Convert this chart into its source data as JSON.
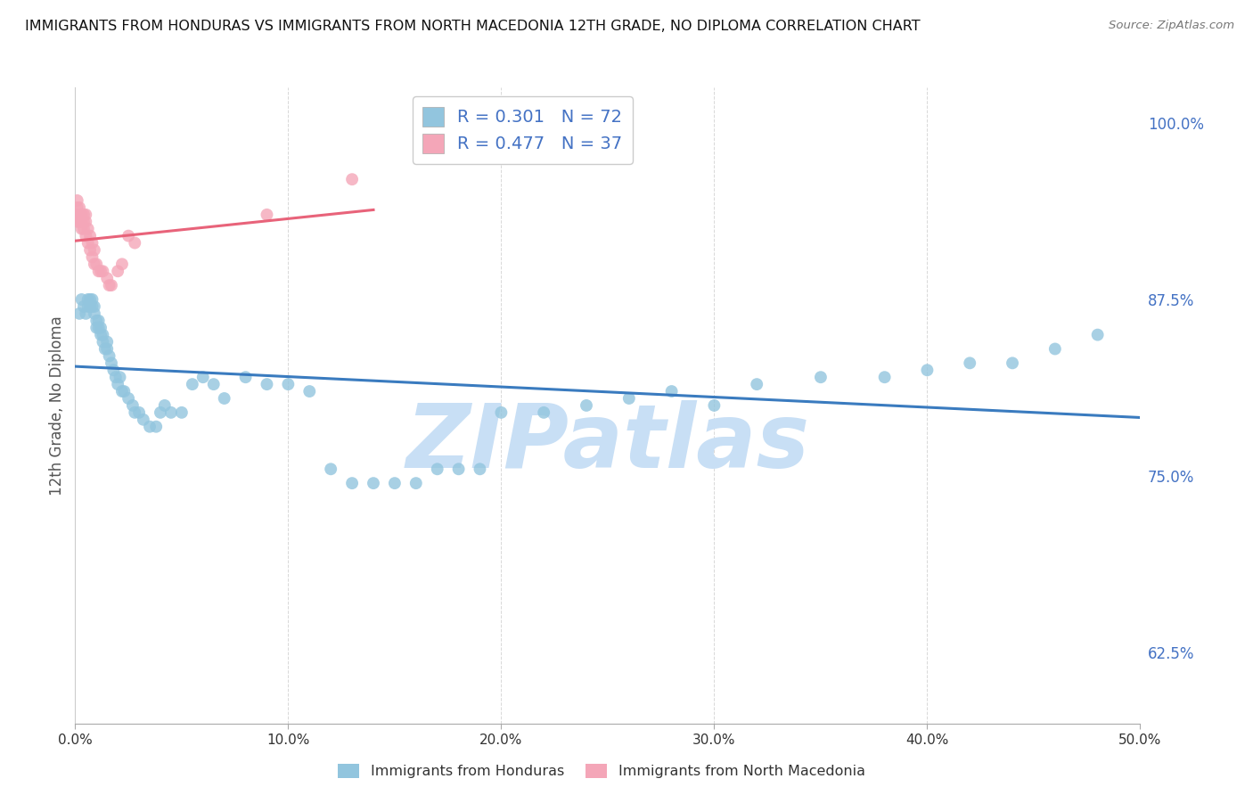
{
  "title": "IMMIGRANTS FROM HONDURAS VS IMMIGRANTS FROM NORTH MACEDONIA 12TH GRADE, NO DIPLOMA CORRELATION CHART",
  "source": "Source: ZipAtlas.com",
  "ylabel": "12th Grade, No Diploma",
  "xlim": [
    0.0,
    0.5
  ],
  "ylim": [
    0.575,
    1.025
  ],
  "yticks": [
    0.625,
    0.75,
    0.875,
    1.0
  ],
  "ytick_labels": [
    "62.5%",
    "75.0%",
    "87.5%",
    "100.0%"
  ],
  "xticks": [
    0.0,
    0.1,
    0.2,
    0.3,
    0.4,
    0.5
  ],
  "xtick_labels": [
    "0.0%",
    "10.0%",
    "20.0%",
    "30.0%",
    "40.0%",
    "50.0%"
  ],
  "honduras_R": 0.301,
  "honduras_N": 72,
  "macedonia_R": 0.477,
  "macedonia_N": 37,
  "blue_color": "#92c5de",
  "pink_color": "#f4a6b8",
  "blue_line_color": "#3a7bbf",
  "pink_line_color": "#e8637a",
  "honduras_x": [
    0.002,
    0.003,
    0.004,
    0.005,
    0.006,
    0.006,
    0.007,
    0.007,
    0.008,
    0.008,
    0.009,
    0.009,
    0.01,
    0.01,
    0.011,
    0.011,
    0.012,
    0.012,
    0.013,
    0.013,
    0.014,
    0.015,
    0.015,
    0.016,
    0.017,
    0.018,
    0.019,
    0.02,
    0.021,
    0.022,
    0.023,
    0.025,
    0.027,
    0.028,
    0.03,
    0.032,
    0.035,
    0.038,
    0.04,
    0.042,
    0.045,
    0.05,
    0.055,
    0.06,
    0.065,
    0.07,
    0.08,
    0.09,
    0.1,
    0.11,
    0.12,
    0.13,
    0.14,
    0.15,
    0.16,
    0.17,
    0.18,
    0.19,
    0.2,
    0.22,
    0.24,
    0.26,
    0.28,
    0.3,
    0.32,
    0.35,
    0.38,
    0.4,
    0.42,
    0.44,
    0.46,
    0.48
  ],
  "honduras_y": [
    0.865,
    0.875,
    0.87,
    0.865,
    0.875,
    0.87,
    0.87,
    0.875,
    0.87,
    0.875,
    0.865,
    0.87,
    0.855,
    0.86,
    0.855,
    0.86,
    0.85,
    0.855,
    0.845,
    0.85,
    0.84,
    0.84,
    0.845,
    0.835,
    0.83,
    0.825,
    0.82,
    0.815,
    0.82,
    0.81,
    0.81,
    0.805,
    0.8,
    0.795,
    0.795,
    0.79,
    0.785,
    0.785,
    0.795,
    0.8,
    0.795,
    0.795,
    0.815,
    0.82,
    0.815,
    0.805,
    0.82,
    0.815,
    0.815,
    0.81,
    0.755,
    0.745,
    0.745,
    0.745,
    0.745,
    0.755,
    0.755,
    0.755,
    0.795,
    0.795,
    0.8,
    0.805,
    0.81,
    0.8,
    0.815,
    0.82,
    0.82,
    0.825,
    0.83,
    0.83,
    0.84,
    0.85
  ],
  "macedonia_x": [
    0.001,
    0.001,
    0.001,
    0.001,
    0.002,
    0.002,
    0.002,
    0.003,
    0.003,
    0.003,
    0.004,
    0.004,
    0.004,
    0.005,
    0.005,
    0.005,
    0.006,
    0.006,
    0.007,
    0.007,
    0.008,
    0.008,
    0.009,
    0.009,
    0.01,
    0.011,
    0.012,
    0.013,
    0.015,
    0.016,
    0.017,
    0.02,
    0.022,
    0.025,
    0.028,
    0.09,
    0.13
  ],
  "macedonia_y": [
    0.93,
    0.935,
    0.94,
    0.945,
    0.93,
    0.935,
    0.94,
    0.925,
    0.93,
    0.935,
    0.925,
    0.93,
    0.935,
    0.92,
    0.93,
    0.935,
    0.915,
    0.925,
    0.91,
    0.92,
    0.905,
    0.915,
    0.9,
    0.91,
    0.9,
    0.895,
    0.895,
    0.895,
    0.89,
    0.885,
    0.885,
    0.895,
    0.9,
    0.92,
    0.915,
    0.935,
    0.96
  ],
  "watermark_text": "ZIPatlas",
  "watermark_color": "#c8dff5",
  "background_color": "#ffffff",
  "grid_color": "#d8d8d8",
  "legend_text_color": "#4472c4",
  "axis_label_color": "#555555",
  "right_tick_color": "#4472c4"
}
